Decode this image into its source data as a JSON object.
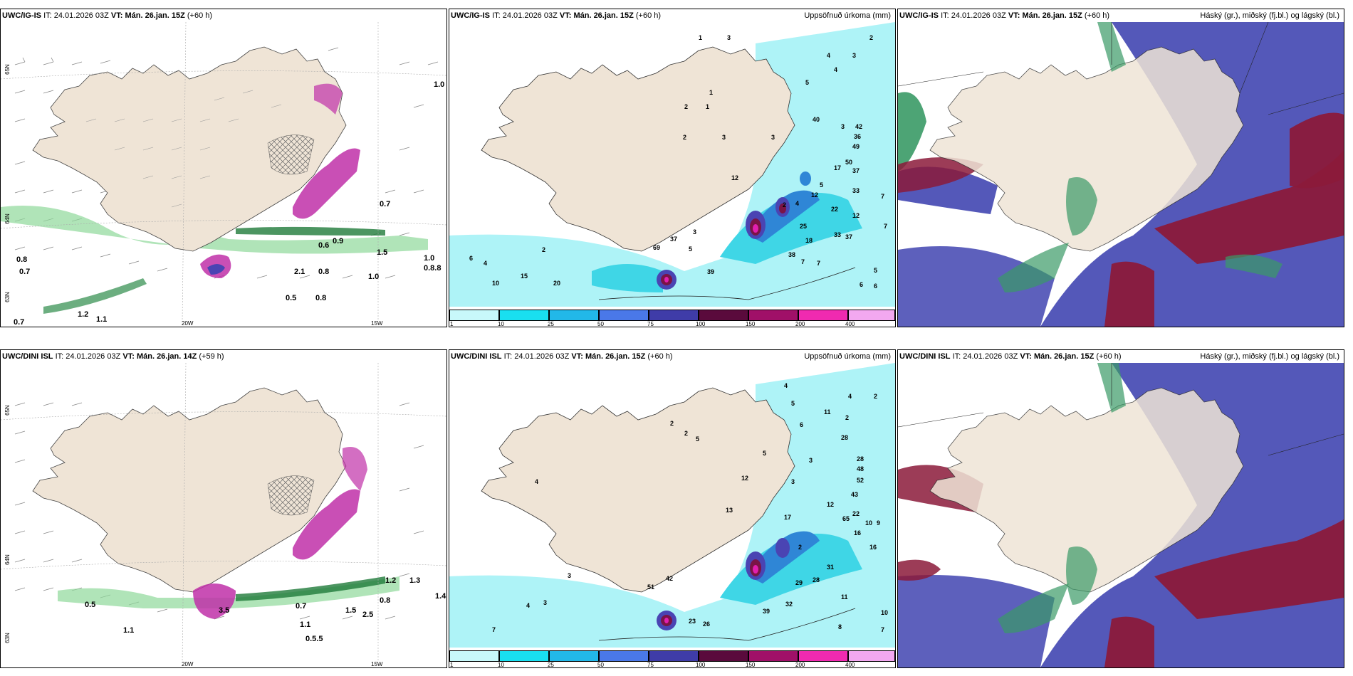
{
  "colors": {
    "land": "#efe4d6",
    "sea": "#ffffff",
    "precip_light": "#aef3f7",
    "precip_mid": "#3fd6e6",
    "precip_blue": "#2f86d6",
    "precip_dark": "#4a44b3",
    "precip_maroon": "#7a1446",
    "precip_magenta": "#e11fb0",
    "cloud_high": "#3a9a66",
    "cloud_mid": "#8b1a3a",
    "cloud_low": "#4b4fb5",
    "snow_green": "#8fd99a",
    "pink_shade": "#c030a8"
  },
  "rows": [
    {
      "wind_panel": {
        "model": "UWC/IG-IS",
        "it_label": "IT:",
        "it_value": "24.01.2026 03Z",
        "vt_label": "VT:",
        "vt_value": "Mán. 26.jan. 15Z",
        "lead": "(+60 h)",
        "lat_top": "65N",
        "lat_mid": "64N",
        "lat_bot": "63N",
        "lon_left": "20W",
        "lon_right": "15W",
        "values": [
          "1.0",
          "0.8",
          "0.7",
          "0.7",
          "1.2",
          "1.1",
          "2.1",
          "1.0",
          "0.8",
          "0.5",
          "0.8",
          "0.9",
          "1.5",
          "0.6",
          "1.0",
          "0.8.8",
          "0.7"
        ]
      },
      "precip_panel": {
        "model": "UWC/IG-IS",
        "it_label": "IT:",
        "it_value": "24.01.2026 03Z",
        "vt_label": "VT:",
        "vt_value": "Mán. 26.jan. 15Z",
        "lead": "(+60 h)",
        "title_right": "Uppsöfnuð úrkoma (mm)",
        "numbers": [
          "1",
          "3",
          "2",
          "1",
          "4",
          "3",
          "4",
          "5",
          "2",
          "1",
          "3",
          "2",
          "3",
          "12",
          "40",
          "42",
          "36",
          "49",
          "37",
          "17",
          "3",
          "50",
          "12",
          "5",
          "4",
          "12",
          "37",
          "33",
          "22",
          "2",
          "25",
          "18",
          "33",
          "38",
          "39",
          "3",
          "37",
          "69",
          "5",
          "2",
          "6",
          "4",
          "15",
          "20",
          "10",
          "7",
          "7",
          "6",
          "6",
          "7",
          "5",
          "7"
        ]
      },
      "cloud_panel": {
        "model": "UWC/IG-IS",
        "it_label": "IT:",
        "it_value": "24.01.2026 03Z",
        "vt_label": "VT:",
        "vt_value": "Mán. 26.jan. 15Z",
        "lead": "(+60 h)",
        "title_right": "Háský (gr.), miðský (fj.bl.) og lágský (bl.)"
      }
    },
    {
      "wind_panel": {
        "model": "UWC/DINI ISL",
        "it_label": "IT:",
        "it_value": "24.01.2026 03Z",
        "vt_label": "VT:",
        "vt_value": "Mán. 26.jan. 14Z",
        "lead": "(+59 h)",
        "lat_top": "65N",
        "lat_mid": "64N",
        "lat_bot": "63N",
        "lon_left": "20W",
        "lon_right": "15W",
        "values": [
          "0.5",
          "1.1",
          "3.5",
          "0.7",
          "2.5",
          "1.5",
          "1.1",
          "1.2",
          "0.5.5",
          "0.8",
          "1.4",
          "1.3"
        ]
      },
      "precip_panel": {
        "model": "UWC/DINI ISL",
        "it_label": "IT:",
        "it_value": "24.01.2026 03Z",
        "vt_label": "VT:",
        "vt_value": "Mán. 26.jan. 15Z",
        "lead": "(+60 h)",
        "title_right": "Uppsöfnuð úrkoma (mm)",
        "numbers": [
          "4",
          "4",
          "2",
          "2",
          "5",
          "11",
          "6",
          "5",
          "2",
          "2",
          "5",
          "12",
          "3",
          "3",
          "13",
          "28",
          "28",
          "48",
          "52",
          "43",
          "22",
          "65",
          "16",
          "17",
          "12",
          "31",
          "28",
          "29",
          "32",
          "39",
          "26",
          "23",
          "42",
          "51",
          "3",
          "4",
          "3",
          "7",
          "10",
          "9",
          "16",
          "11",
          "10",
          "8",
          "7",
          "4",
          "2"
        ]
      },
      "cloud_panel": {
        "model": "UWC/DINI ISL",
        "it_label": "IT:",
        "it_value": "24.01.2026 03Z",
        "vt_label": "VT:",
        "vt_value": "Mán. 26.jan. 15Z",
        "lead": "(+60 h)",
        "title_right": "Háský (gr.), miðský (fj.bl.) og lágský (bl.)"
      }
    }
  ],
  "colorbar": {
    "ticks": [
      "1",
      "10",
      "25",
      "50",
      "75",
      "100",
      "150",
      "200",
      "400"
    ],
    "colors": [
      "#c8f8fa",
      "#19dff0",
      "#22b8e8",
      "#4a78e8",
      "#3f3ca8",
      "#5a0a3c",
      "#a01068",
      "#f02ab0",
      "#f2a8f0"
    ]
  }
}
